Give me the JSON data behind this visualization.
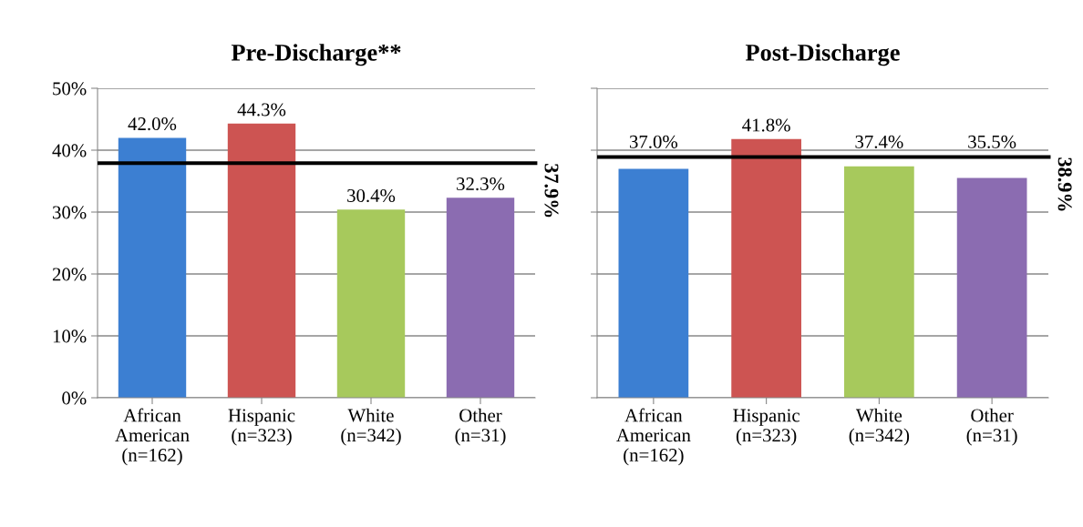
{
  "chart_data": [
    {
      "type": "bar",
      "title": "Pre-Discharge**",
      "categories": [
        "African\nAmerican\n(n=162)",
        "Hispanic\n(n=323)",
        "White\n(n=342)",
        "Other\n(n=31)"
      ],
      "values": [
        42.0,
        44.3,
        30.4,
        32.3
      ],
      "colors": [
        "#3c7fd2",
        "#cd5452",
        "#a7c95c",
        "#8b6cb1"
      ],
      "value_labels": [
        "42.0%",
        "44.3%",
        "30.4%",
        "32.3%"
      ],
      "ylim": [
        0,
        50
      ],
      "yticks": [
        {
          "value": 0,
          "label": "0%"
        },
        {
          "value": 10,
          "label": "10%"
        },
        {
          "value": 20,
          "label": "20%"
        },
        {
          "value": 30,
          "label": "30%"
        },
        {
          "value": 40,
          "label": "40%"
        },
        {
          "value": 50,
          "label": "50%"
        }
      ],
      "grid": "y",
      "ref_lines": [
        {
          "axis": "y",
          "value": 37.9,
          "label": "37.9%",
          "color": "#000000"
        }
      ]
    },
    {
      "type": "bar",
      "title": "Post-Discharge",
      "categories": [
        "African\nAmerican\n(n=162)",
        "Hispanic\n(n=323)",
        "White\n(n=342)",
        "Other\n(n=31)"
      ],
      "values": [
        37.0,
        41.8,
        37.4,
        35.5
      ],
      "colors": [
        "#3c7fd2",
        "#cd5452",
        "#a7c95c",
        "#8b6cb1"
      ],
      "value_labels": [
        "37.0%",
        "41.8%",
        "37.4%",
        "35.5%"
      ],
      "ylim": [
        0,
        50
      ],
      "yticks": [
        0,
        10,
        20,
        30,
        40,
        50
      ],
      "tick_labels": "x",
      "grid": "y",
      "ref_lines": [
        {
          "axis": "y",
          "value": 38.9,
          "label": "38.9%",
          "color": "#000000"
        }
      ]
    }
  ]
}
